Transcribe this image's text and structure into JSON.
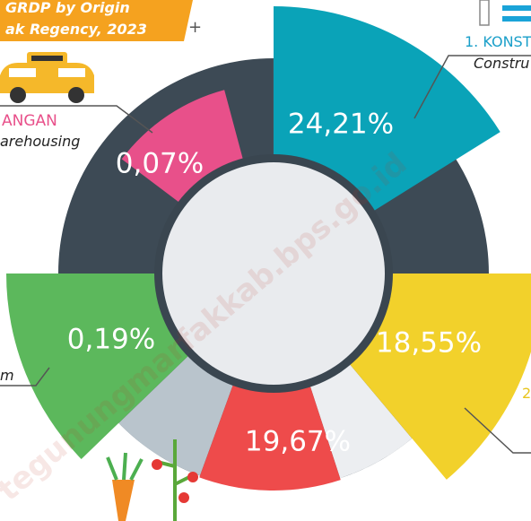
{
  "header": {
    "title": "GRDP by Origin",
    "subtitle": "ak Regency, 2023",
    "plus": "+"
  },
  "segments": [
    {
      "label": "24,21%",
      "name": "1. KONST",
      "name_en": "Constru"
    },
    {
      "label": "18,55%",
      "name": "2"
    },
    {
      "label": "19,67%"
    },
    {
      "label": "0,19%",
      "name_en": "m"
    },
    {
      "label": "0,07%",
      "name": "ANGAN",
      "name_en": "arehousing"
    }
  ],
  "watermark": "tegunungmarfakkab.bps.go.id"
}
